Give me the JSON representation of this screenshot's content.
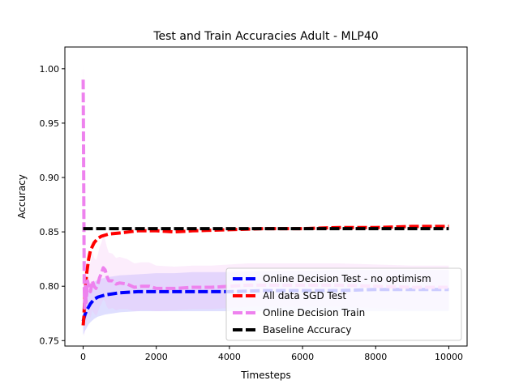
{
  "chart_data": {
    "type": "line",
    "title": "Test and Train Accuracies Adult - MLP40",
    "xlabel": "Timesteps",
    "ylabel": "Accuracy",
    "xlim": [
      -500,
      10500
    ],
    "ylim": [
      0.745,
      1.02
    ],
    "xticks": [
      0,
      2000,
      4000,
      6000,
      8000,
      10000
    ],
    "yticks": [
      0.75,
      0.8,
      0.85,
      0.9,
      0.95,
      1.0
    ],
    "xtick_labels": [
      "0",
      "2000",
      "4000",
      "6000",
      "8000",
      "10000"
    ],
    "ytick_labels": [
      "0.75",
      "0.80",
      "0.85",
      "0.90",
      "0.95",
      "1.00"
    ],
    "legend_position": "lower-right",
    "series": [
      {
        "name": "Online Decision Test - no optimism",
        "color": "#0000ff",
        "band_color": "#8080ff",
        "style": "dashed",
        "x": [
          0,
          25,
          50,
          100,
          150,
          200,
          300,
          400,
          600,
          800,
          1000,
          1500,
          2000,
          2500,
          3000,
          3500,
          4000,
          5000,
          6000,
          7000,
          8000,
          9000,
          10000
        ],
        "y": [
          0.768,
          0.771,
          0.774,
          0.778,
          0.781,
          0.784,
          0.788,
          0.79,
          0.792,
          0.793,
          0.794,
          0.795,
          0.795,
          0.795,
          0.795,
          0.795,
          0.795,
          0.796,
          0.796,
          0.796,
          0.797,
          0.797,
          0.797
        ],
        "lower": [
          0.755,
          0.757,
          0.759,
          0.762,
          0.765,
          0.767,
          0.77,
          0.772,
          0.774,
          0.775,
          0.776,
          0.777,
          0.777,
          0.777,
          0.777,
          0.777,
          0.777,
          0.777,
          0.777,
          0.777,
          0.777,
          0.777,
          0.777
        ],
        "upper": [
          0.782,
          0.785,
          0.789,
          0.794,
          0.797,
          0.8,
          0.804,
          0.806,
          0.808,
          0.809,
          0.81,
          0.811,
          0.812,
          0.812,
          0.813,
          0.813,
          0.813,
          0.814,
          0.814,
          0.815,
          0.815,
          0.815,
          0.815
        ]
      },
      {
        "name": "All data SGD Test",
        "color": "#ff0000",
        "style": "dashed",
        "x": [
          0,
          20,
          50,
          100,
          150,
          200,
          300,
          400,
          500,
          700,
          1000,
          1500,
          2000,
          2500,
          3000,
          4000,
          5000,
          6000,
          7000,
          8000,
          9000,
          10000
        ],
        "y": [
          0.764,
          0.772,
          0.795,
          0.813,
          0.825,
          0.833,
          0.84,
          0.844,
          0.846,
          0.848,
          0.849,
          0.851,
          0.851,
          0.85,
          0.851,
          0.852,
          0.853,
          0.853,
          0.854,
          0.854,
          0.855,
          0.855
        ]
      },
      {
        "name": "Online Decision Train",
        "color": "#ee82ee",
        "band_color": "#f5b8f5",
        "style": "dashed",
        "x": [
          0,
          10,
          20,
          30,
          40,
          50,
          60,
          80,
          100,
          120,
          150,
          200,
          250,
          300,
          350,
          400,
          450,
          500,
          550,
          600,
          650,
          700,
          800,
          900,
          1000,
          1200,
          1400,
          1600,
          1800,
          2000,
          2500,
          3000,
          3500,
          4000,
          4500,
          5000,
          6000,
          7000,
          8000,
          9000,
          10000
        ],
        "y": [
          0.99,
          0.93,
          0.86,
          0.8,
          0.78,
          0.79,
          0.8,
          0.785,
          0.795,
          0.805,
          0.8,
          0.795,
          0.805,
          0.8,
          0.798,
          0.802,
          0.808,
          0.812,
          0.817,
          0.815,
          0.809,
          0.805,
          0.805,
          0.802,
          0.803,
          0.802,
          0.799,
          0.8,
          0.8,
          0.798,
          0.798,
          0.799,
          0.799,
          0.8,
          0.801,
          0.801,
          0.801,
          0.801,
          0.8,
          0.799,
          0.799
        ],
        "lower": [
          0.955,
          0.88,
          0.8,
          0.755,
          0.755,
          0.762,
          0.768,
          0.762,
          0.77,
          0.776,
          0.775,
          0.771,
          0.778,
          0.775,
          0.773,
          0.776,
          0.781,
          0.784,
          0.788,
          0.786,
          0.781,
          0.779,
          0.78,
          0.778,
          0.779,
          0.779,
          0.777,
          0.778,
          0.778,
          0.777,
          0.778,
          0.779,
          0.779,
          0.78,
          0.781,
          0.781,
          0.781,
          0.781,
          0.78,
          0.779,
          0.779
        ],
        "upper": [
          1.005,
          0.975,
          0.915,
          0.85,
          0.815,
          0.82,
          0.83,
          0.812,
          0.82,
          0.834,
          0.827,
          0.821,
          0.832,
          0.826,
          0.824,
          0.829,
          0.836,
          0.84,
          0.846,
          0.843,
          0.836,
          0.831,
          0.83,
          0.826,
          0.827,
          0.825,
          0.821,
          0.822,
          0.822,
          0.819,
          0.818,
          0.819,
          0.819,
          0.82,
          0.821,
          0.821,
          0.821,
          0.821,
          0.82,
          0.819,
          0.819
        ]
      },
      {
        "name": "Baseline Accuracy",
        "color": "#000000",
        "style": "dashed",
        "x": [
          0,
          10000
        ],
        "y": [
          0.853,
          0.853
        ]
      }
    ]
  }
}
